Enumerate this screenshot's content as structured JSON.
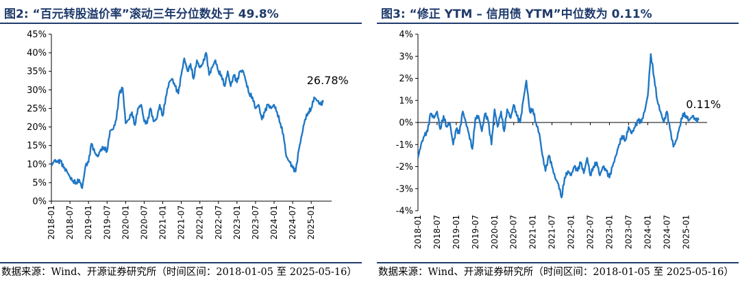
{
  "charts": [
    {
      "title": "图2: “百元转股溢价率”滚动三年分位数处于 49.8%",
      "source": "数据来源：Wind、开源证券研究所（时间区间：2018-01-05 至 2025-05-16）",
      "chart_data": {
        "type": "line",
        "title": "图2: “百元转股溢价率”滚动三年分位数处于 49.8%",
        "xlabel": "",
        "ylabel": "",
        "ylim": [
          0,
          45
        ],
        "y_ticks": [
          "0%",
          "5%",
          "10%",
          "15%",
          "20%",
          "25%",
          "30%",
          "35%",
          "40%",
          "45%"
        ],
        "x_ticks": [
          "2018-01",
          "2018-07",
          "2019-01",
          "2019-07",
          "2020-01",
          "2020-07",
          "2021-01",
          "2021-07",
          "2022-01",
          "2022-07",
          "2023-01",
          "2023-07",
          "2024-01",
          "2024-07",
          "2025-01"
        ],
        "annotation": "26.78%",
        "grid": false,
        "series": [
          {
            "color": "#1f77c4",
            "x": [
              2018.0,
              2018.08,
              2018.17,
              2018.25,
              2018.33,
              2018.42,
              2018.5,
              2018.58,
              2018.67,
              2018.75,
              2018.83,
              2018.92,
              2019.0,
              2019.08,
              2019.17,
              2019.25,
              2019.33,
              2019.42,
              2019.5,
              2019.58,
              2019.67,
              2019.75,
              2019.83,
              2019.92,
              2020.0,
              2020.08,
              2020.17,
              2020.25,
              2020.33,
              2020.42,
              2020.5,
              2020.58,
              2020.67,
              2020.75,
              2020.83,
              2020.92,
              2021.0,
              2021.08,
              2021.17,
              2021.25,
              2021.33,
              2021.42,
              2021.5,
              2021.58,
              2021.67,
              2021.75,
              2021.83,
              2021.92,
              2022.0,
              2022.08,
              2022.17,
              2022.25,
              2022.33,
              2022.42,
              2022.5,
              2022.58,
              2022.67,
              2022.75,
              2022.83,
              2022.92,
              2023.0,
              2023.08,
              2023.17,
              2023.25,
              2023.33,
              2023.42,
              2023.5,
              2023.58,
              2023.67,
              2023.75,
              2023.83,
              2023.92,
              2024.0,
              2024.08,
              2024.17,
              2024.25,
              2024.33,
              2024.42,
              2024.5,
              2024.58,
              2024.67,
              2024.75,
              2024.83,
              2024.92,
              2025.0,
              2025.08,
              2025.17,
              2025.25,
              2025.33
            ],
            "y": [
              9.5,
              11.0,
              10.5,
              10.8,
              9.0,
              8.0,
              6.5,
              5.5,
              5.0,
              5.8,
              3.5,
              9.5,
              10.5,
              15.5,
              13.0,
              12.0,
              14.0,
              14.5,
              13.5,
              19.0,
              19.5,
              22.0,
              29.0,
              30.5,
              21.0,
              22.0,
              24.0,
              20.5,
              25.0,
              26.0,
              21.5,
              21.0,
              25.0,
              21.5,
              22.0,
              26.0,
              23.0,
              28.0,
              32.0,
              33.0,
              31.0,
              29.0,
              34.0,
              38.5,
              35.0,
              37.0,
              33.0,
              38.0,
              36.0,
              37.0,
              40.0,
              34.0,
              36.0,
              38.0,
              35.0,
              34.0,
              31.0,
              35.0,
              31.0,
              34.0,
              32.0,
              35.0,
              35.0,
              32.0,
              29.0,
              28.0,
              25.0,
              26.0,
              22.0,
              24.0,
              26.0,
              25.0,
              26.0,
              24.0,
              21.0,
              18.0,
              12.0,
              10.5,
              9.0,
              8.0,
              14.0,
              18.0,
              22.0,
              24.0,
              25.0,
              28.0,
              27.0,
              26.0,
              26.8
            ]
          }
        ]
      }
    },
    {
      "title": "图3: “修正 YTM – 信用债 YTM”中位数为 0.11%",
      "source": "数据来源：Wind、开源证券研究所（时间区间：2018-01-05 至 2025-05-16）",
      "chart_data": {
        "type": "line",
        "title": "图3: “修正 YTM – 信用债 YTM”中位数为 0.11%",
        "xlabel": "",
        "ylabel": "",
        "ylim": [
          -4,
          4
        ],
        "y_ticks": [
          "-4%",
          "-3%",
          "-2%",
          "-1%",
          "0%",
          "1%",
          "2%",
          "3%",
          "4%"
        ],
        "x_ticks": [
          "2018-01",
          "2018-07",
          "2019-01",
          "2019-07",
          "2020-01",
          "2020-07",
          "2021-01",
          "2021-07",
          "2022-01",
          "2022-07",
          "2023-01",
          "2023-07",
          "2024-01",
          "2024-07",
          "2025-01"
        ],
        "annotation": "0.11%",
        "grid": false,
        "series": [
          {
            "color": "#1f77c4",
            "x": [
              2018.0,
              2018.08,
              2018.17,
              2018.25,
              2018.33,
              2018.42,
              2018.5,
              2018.58,
              2018.67,
              2018.75,
              2018.83,
              2018.92,
              2019.0,
              2019.08,
              2019.17,
              2019.25,
              2019.33,
              2019.42,
              2019.5,
              2019.58,
              2019.67,
              2019.75,
              2019.83,
              2019.92,
              2020.0,
              2020.08,
              2020.17,
              2020.25,
              2020.33,
              2020.42,
              2020.5,
              2020.58,
              2020.67,
              2020.75,
              2020.83,
              2020.92,
              2021.0,
              2021.08,
              2021.17,
              2021.25,
              2021.33,
              2021.42,
              2021.5,
              2021.58,
              2021.67,
              2021.75,
              2021.83,
              2021.92,
              2022.0,
              2022.08,
              2022.17,
              2022.25,
              2022.33,
              2022.42,
              2022.5,
              2022.58,
              2022.67,
              2022.75,
              2022.83,
              2022.92,
              2023.0,
              2023.08,
              2023.17,
              2023.25,
              2023.33,
              2023.42,
              2023.5,
              2023.58,
              2023.67,
              2023.75,
              2023.83,
              2023.92,
              2024.0,
              2024.08,
              2024.17,
              2024.25,
              2024.33,
              2024.42,
              2024.5,
              2024.58,
              2024.67,
              2024.75,
              2024.83,
              2024.92,
              2025.0,
              2025.08,
              2025.17,
              2025.25,
              2025.33
            ],
            "y": [
              -1.6,
              -1.0,
              -0.6,
              -0.4,
              0.4,
              0.2,
              0.5,
              -0.3,
              0.3,
              -0.2,
              0.0,
              -1.0,
              -0.3,
              -0.5,
              0.5,
              0.0,
              -0.5,
              -1.2,
              0.2,
              0.3,
              -0.4,
              0.4,
              0.1,
              -1.0,
              0.6,
              -0.2,
              0.5,
              -0.4,
              0.6,
              0.2,
              0.8,
              0.3,
              0.0,
              1.0,
              1.9,
              0.5,
              0.6,
              0.0,
              -0.5,
              -1.5,
              -2.2,
              -1.5,
              -2.0,
              -2.5,
              -2.8,
              -3.4,
              -2.5,
              -2.2,
              -2.4,
              -2.0,
              -2.2,
              -1.8,
              -2.3,
              -1.6,
              -2.4,
              -2.0,
              -1.8,
              -2.4,
              -2.0,
              -2.2,
              -2.5,
              -2.0,
              -1.5,
              -1.0,
              -0.6,
              -0.8,
              -0.2,
              -0.5,
              -0.2,
              0.1,
              0.0,
              0.5,
              1.2,
              3.1,
              2.0,
              1.0,
              0.5,
              0.0,
              0.5,
              -0.3,
              -1.1,
              -0.8,
              -0.2,
              0.4,
              0.3,
              0.1,
              0.3,
              0.1,
              0.11
            ]
          }
        ]
      }
    }
  ]
}
